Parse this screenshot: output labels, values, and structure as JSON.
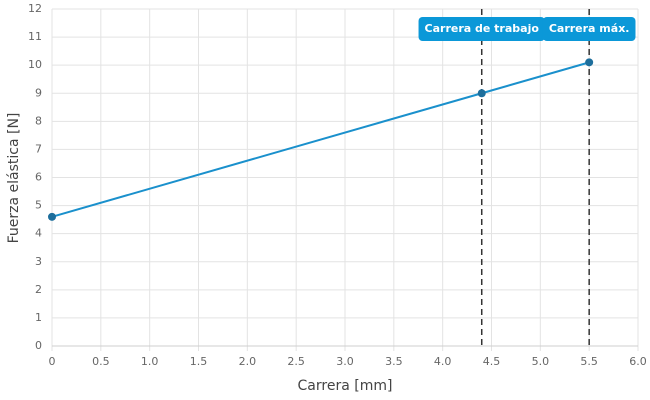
{
  "chart_data": {
    "type": "line",
    "x_label": "Carrera [mm]",
    "y_label": "Fuerza elástica [N]",
    "x": [
      0,
      4.4,
      5.5
    ],
    "values": [
      4.6,
      9.0,
      10.1
    ],
    "color": "#1a90cc",
    "marker_color": "#1d6e9c",
    "xlim": [
      0,
      6
    ],
    "xticks": [
      0,
      0.5,
      {
        "value": 1,
        "label": "1.0"
      },
      1.5,
      {
        "value": 2,
        "label": "2.0"
      },
      2.5,
      {
        "value": 3,
        "label": "3.0"
      },
      3.5,
      {
        "value": 4,
        "label": "4.0"
      },
      4.5,
      {
        "value": 5,
        "label": "5.0"
      },
      5.5,
      {
        "value": 6,
        "label": "6.0"
      }
    ],
    "ylim": [
      0,
      12
    ],
    "yticks": [
      0,
      1,
      2,
      3,
      4,
      5,
      6,
      7,
      8,
      9,
      10,
      11,
      12
    ],
    "grid": true,
    "annotations": [
      {
        "x": 4.4,
        "label": "Carrera de trabajo"
      },
      {
        "x": 5.5,
        "label": "Carrera máx."
      }
    ],
    "annotation_color": "#0b98d8"
  }
}
